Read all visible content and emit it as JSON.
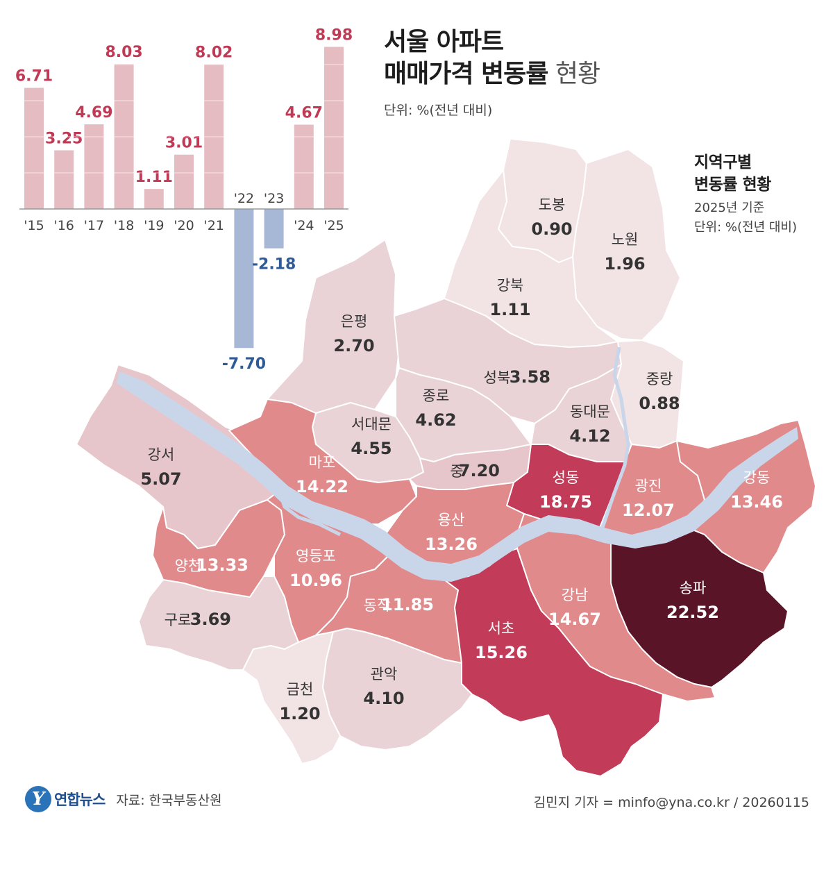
{
  "title": {
    "line1": "서울 아파트",
    "line2_bold": "매매가격 변동률",
    "line2_light": " 현황"
  },
  "unit": "단위: %(전년 대비)",
  "chart_data": {
    "type": "bar",
    "categories": [
      "'15",
      "'16",
      "'17",
      "'18",
      "'19",
      "'20",
      "'21",
      "'22",
      "'23",
      "'24",
      "'25"
    ],
    "values": [
      6.71,
      3.25,
      4.69,
      8.03,
      1.11,
      3.01,
      8.02,
      -7.7,
      -2.18,
      4.67,
      8.98
    ],
    "value_labels": [
      "6.71",
      "3.25",
      "4.69",
      "8.03",
      "1.11",
      "3.01",
      "8.02",
      "-7.70",
      "-2.18",
      "4.67",
      "8.98"
    ],
    "title": "",
    "xlabel": "",
    "ylabel": "",
    "colors": {
      "positive": "#e6bcc3",
      "negative": "#a6b8d6",
      "positive_label": "#c13a55",
      "negative_label": "#2e5a98"
    }
  },
  "map": {
    "heading1": "지역구별",
    "heading2": "변동률 현황",
    "basis": "2025년 기준",
    "unit": "단위: %(전년 대비)",
    "districts": [
      {
        "name": "도봉",
        "value": "0.90"
      },
      {
        "name": "노원",
        "value": "1.96"
      },
      {
        "name": "강북",
        "value": "1.11"
      },
      {
        "name": "은평",
        "value": "2.70"
      },
      {
        "name": "성북",
        "value": "3.58"
      },
      {
        "name": "중랑",
        "value": "0.88"
      },
      {
        "name": "종로",
        "value": "4.62"
      },
      {
        "name": "동대문",
        "value": "4.12"
      },
      {
        "name": "서대문",
        "value": "4.55"
      },
      {
        "name": "강서",
        "value": "5.07"
      },
      {
        "name": "마포",
        "value": "14.22"
      },
      {
        "name": "중",
        "value": "7.20"
      },
      {
        "name": "성동",
        "value": "18.75"
      },
      {
        "name": "광진",
        "value": "12.07"
      },
      {
        "name": "강동",
        "value": "13.46"
      },
      {
        "name": "용산",
        "value": "13.26"
      },
      {
        "name": "양천",
        "value": "13.33"
      },
      {
        "name": "영등포",
        "value": "10.96"
      },
      {
        "name": "송파",
        "value": "22.52"
      },
      {
        "name": "강남",
        "value": "14.67"
      },
      {
        "name": "동작",
        "value": "11.85"
      },
      {
        "name": "구로",
        "value": "3.69"
      },
      {
        "name": "서초",
        "value": "15.26"
      },
      {
        "name": "금천",
        "value": "1.20"
      },
      {
        "name": "관악",
        "value": "4.10"
      }
    ],
    "colors": {
      "very_light": "#f2e3e5",
      "light": "#e9d3d6",
      "pale": "#e7c6cb",
      "medium": "#e08a8c",
      "strong": "#c23b58",
      "darkest": "#5a1428",
      "river": "#c9d6ea"
    }
  },
  "footer": {
    "logo_mark": "Y",
    "logo_text": "연합뉴스",
    "source": "자료: 한국부동산원",
    "credit": "김민지 기자 = minfo@yna.co.kr / 20260115"
  }
}
